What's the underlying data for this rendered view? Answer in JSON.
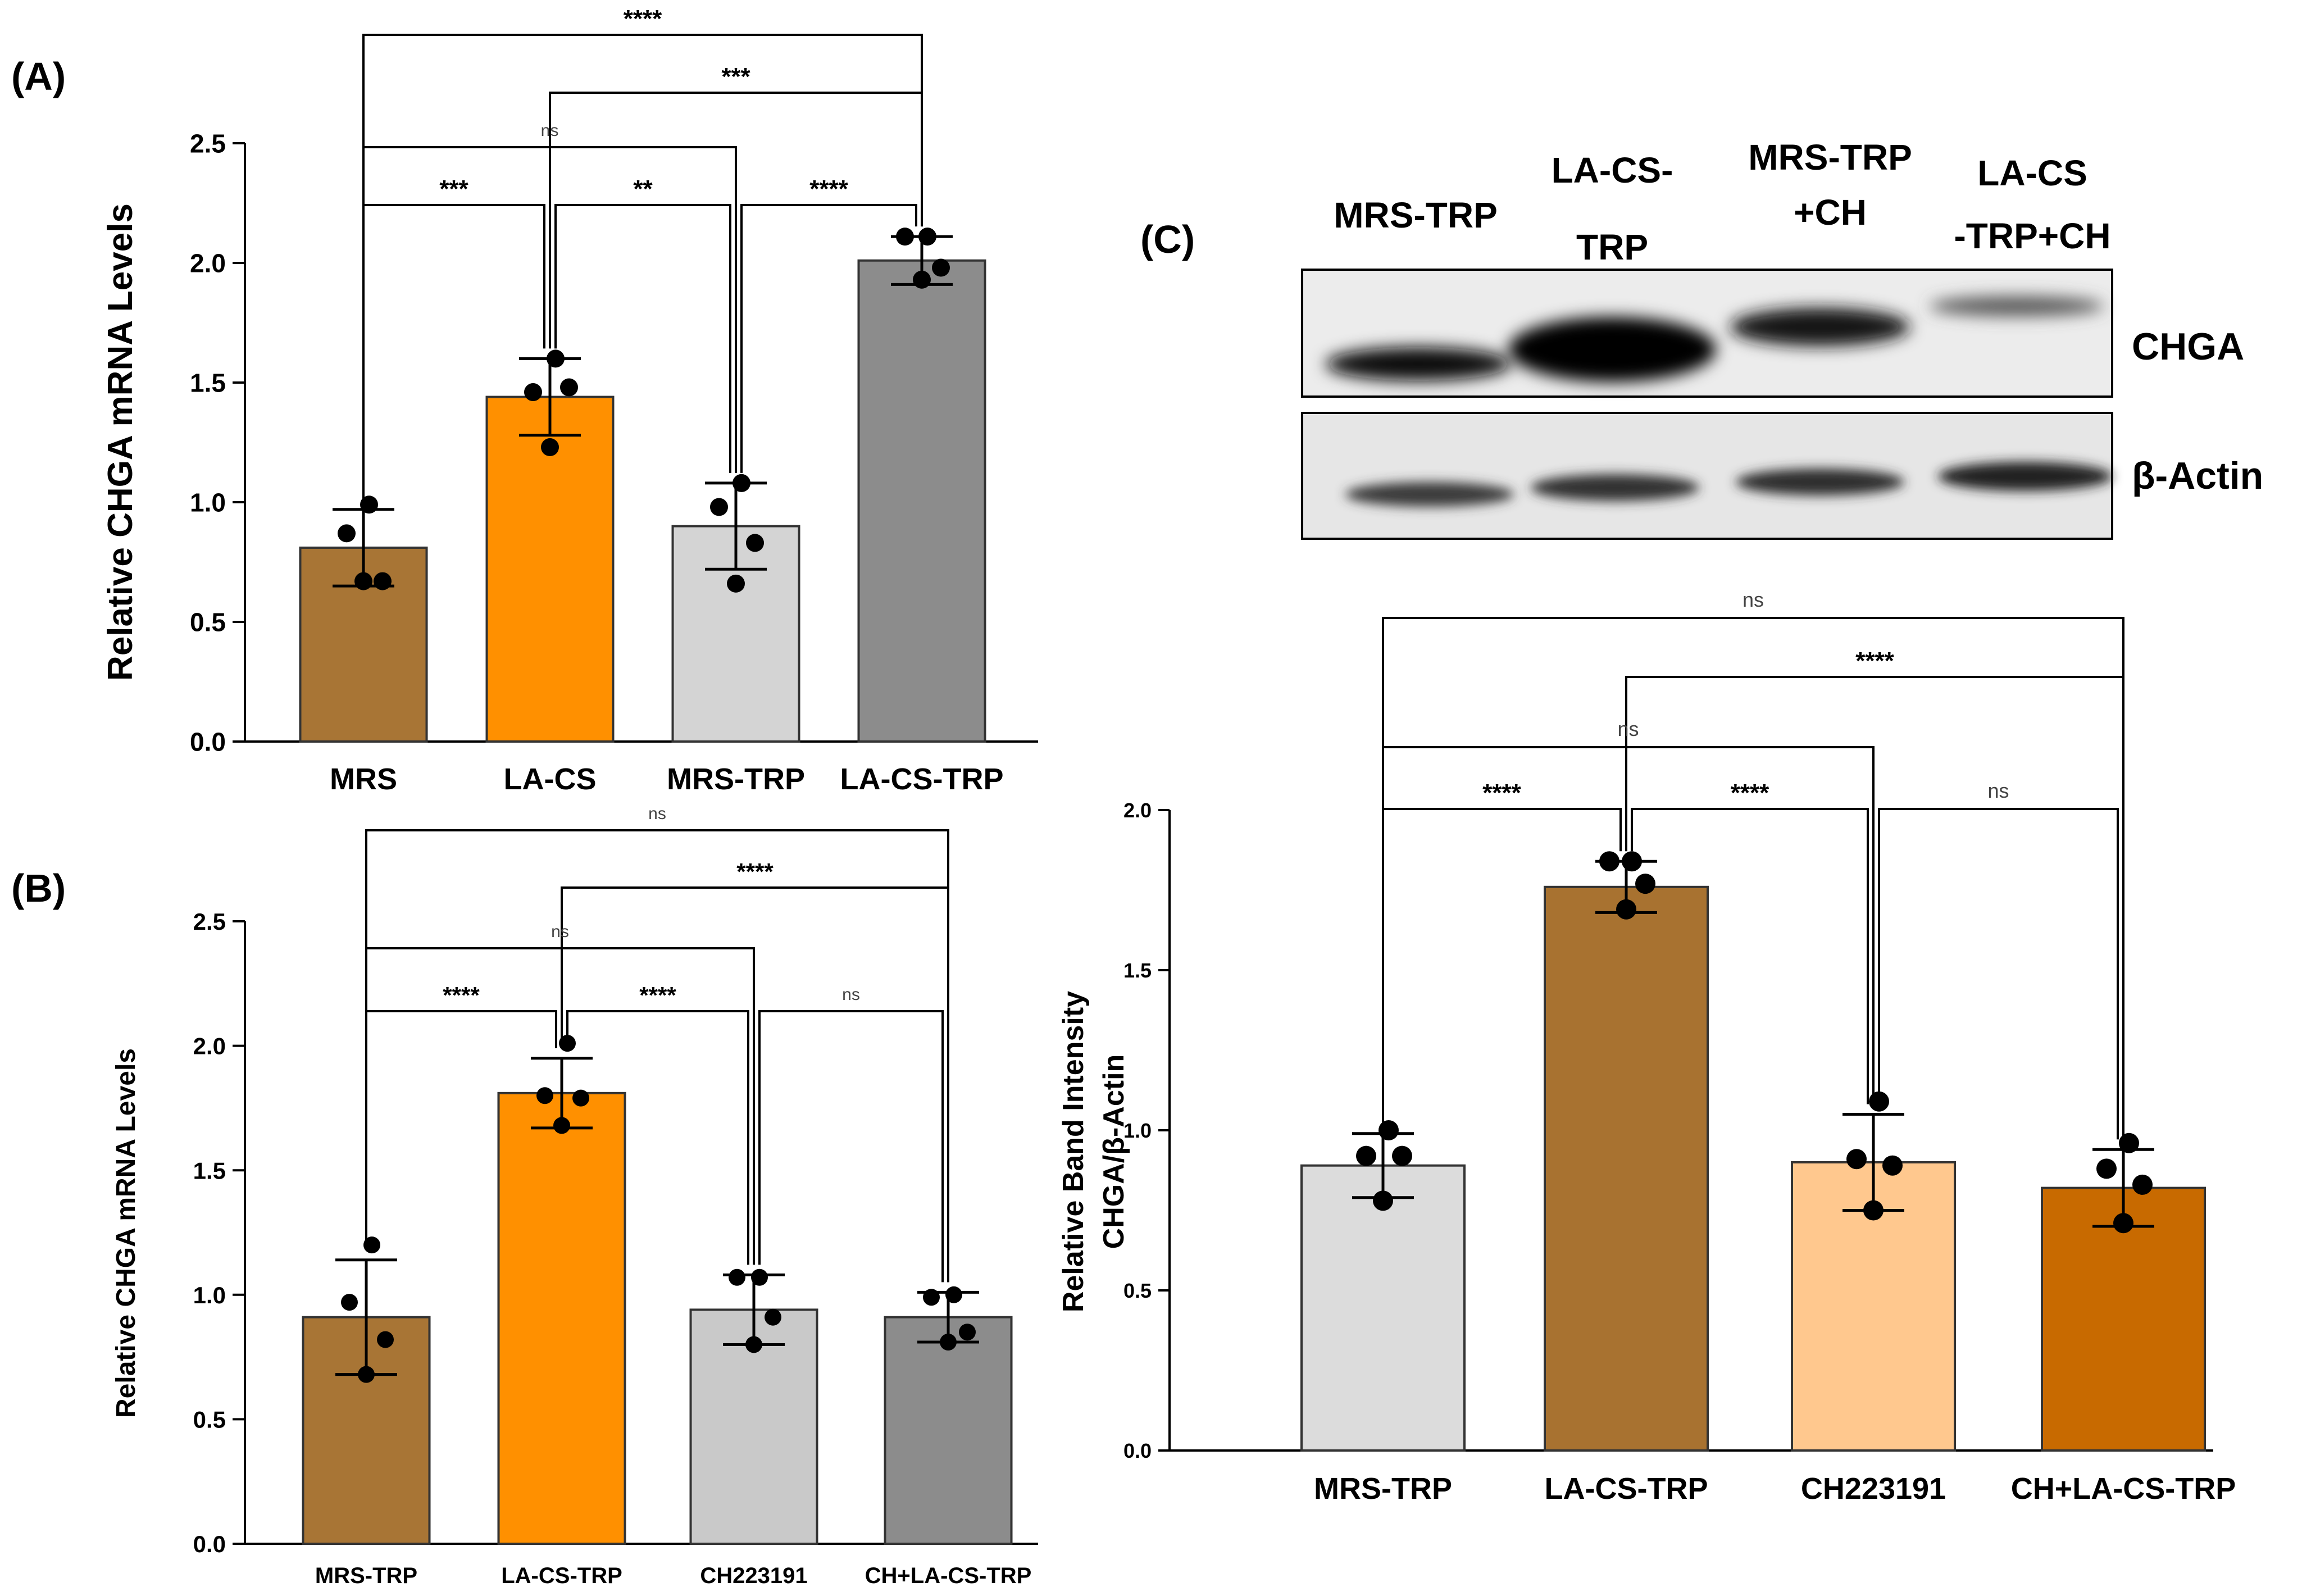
{
  "figure": {
    "panel_labels": [
      "(A)",
      "(B)",
      "(C)"
    ]
  },
  "chart_data": [
    {
      "panel": "(A)",
      "type": "bar",
      "ylabel": "Relative CHGA mRNA Levels",
      "ylim": [
        0,
        2.5
      ],
      "yticks": [
        "0.0",
        "0.5",
        "1.0",
        "1.5",
        "2.0",
        "2.5"
      ],
      "categories": [
        "MRS",
        "LA-CS",
        "MRS-TRP",
        "LA-CS-TRP"
      ],
      "values": [
        0.81,
        1.44,
        0.9,
        2.01
      ],
      "error": [
        0.16,
        0.16,
        0.18,
        0.1
      ],
      "points": [
        [
          0.99,
          0.87,
          0.67,
          0.67
        ],
        [
          1.6,
          1.46,
          1.48,
          1.23
        ],
        [
          1.08,
          0.98,
          0.83,
          0.66
        ],
        [
          2.11,
          2.11,
          1.98,
          1.93
        ]
      ],
      "colors": [
        "#a87535",
        "#ff9000",
        "#d4d4d4",
        "#8c8c8c"
      ],
      "comparisons": [
        {
          "from": 0,
          "to": 3,
          "label": "****"
        },
        {
          "from": 1,
          "to": 3,
          "label": "***"
        },
        {
          "from": 0,
          "to": 2,
          "label": "ns"
        },
        {
          "from": 0,
          "to": 1,
          "label": "***"
        },
        {
          "from": 1,
          "to": 2,
          "label": "**"
        },
        {
          "from": 2,
          "to": 3,
          "label": "****"
        }
      ]
    },
    {
      "panel": "(B)",
      "type": "bar",
      "ylabel": "Relative CHGA mRNA Levels",
      "ylim": [
        0,
        2.5
      ],
      "yticks": [
        "0.0",
        "0.5",
        "1.0",
        "1.5",
        "2.0",
        "2.5"
      ],
      "categories": [
        "MRS-TRP",
        "LA-CS-TRP",
        "CH223191",
        "CH+LA-CS-TRP"
      ],
      "values": [
        0.91,
        1.81,
        0.94,
        0.91
      ],
      "error": [
        0.23,
        0.14,
        0.14,
        0.1
      ],
      "points": [
        [
          1.2,
          0.97,
          0.82,
          0.68
        ],
        [
          2.01,
          1.8,
          1.79,
          1.68
        ],
        [
          1.07,
          1.07,
          0.91,
          0.8
        ],
        [
          1.0,
          0.99,
          0.85,
          0.81
        ]
      ],
      "colors": [
        "#a87535",
        "#ff9000",
        "#c9c9c9",
        "#8c8c8c"
      ],
      "comparisons": [
        {
          "from": 0,
          "to": 3,
          "label": "ns"
        },
        {
          "from": 1,
          "to": 3,
          "label": "****"
        },
        {
          "from": 0,
          "to": 2,
          "label": "ns"
        },
        {
          "from": 0,
          "to": 1,
          "label": "****"
        },
        {
          "from": 1,
          "to": 2,
          "label": "****"
        },
        {
          "from": 2,
          "to": 3,
          "label": "ns"
        }
      ]
    },
    {
      "panel": "(C)",
      "type": "bar",
      "ylabel": "Relative Band Intensity",
      "ylabel2": "CHGA/β-Actin",
      "ylim": [
        0,
        2.0
      ],
      "yticks": [
        "0.0",
        "0.5",
        "1.0",
        "1.5",
        "2.0"
      ],
      "categories": [
        "MRS-TRP",
        "LA-CS-TRP",
        "CH223191",
        "CH+LA-CS-TRP"
      ],
      "values": [
        0.89,
        1.76,
        0.9,
        0.82
      ],
      "error": [
        0.1,
        0.08,
        0.15,
        0.12
      ],
      "points": [
        [
          1.0,
          0.92,
          0.92,
          0.78
        ],
        [
          1.84,
          1.84,
          1.77,
          1.69
        ],
        [
          1.09,
          0.91,
          0.89,
          0.75
        ],
        [
          0.96,
          0.88,
          0.83,
          0.71
        ]
      ],
      "colors": [
        "#dcdcdc",
        "#a87230",
        "#ffc88e",
        "#c86a00"
      ],
      "comparisons": [
        {
          "from": 0,
          "to": 3,
          "label": "ns"
        },
        {
          "from": 1,
          "to": 3,
          "label": "****"
        },
        {
          "from": 0,
          "to": 2,
          "label": "ns"
        },
        {
          "from": 0,
          "to": 1,
          "label": "****"
        },
        {
          "from": 1,
          "to": 2,
          "label": "****"
        },
        {
          "from": 2,
          "to": 3,
          "label": "ns"
        }
      ]
    }
  ],
  "blot": {
    "lane_headers": [
      {
        "line1": "MRS-TRP",
        "line2": ""
      },
      {
        "line1": "LA-CS-",
        "line2": "TRP"
      },
      {
        "line1": "MRS-TRP",
        "line2": "+CH"
      },
      {
        "line1": "LA-CS",
        "line2": "-TRP+CH"
      }
    ],
    "row_labels": [
      "CHGA",
      "β-Actin"
    ]
  }
}
